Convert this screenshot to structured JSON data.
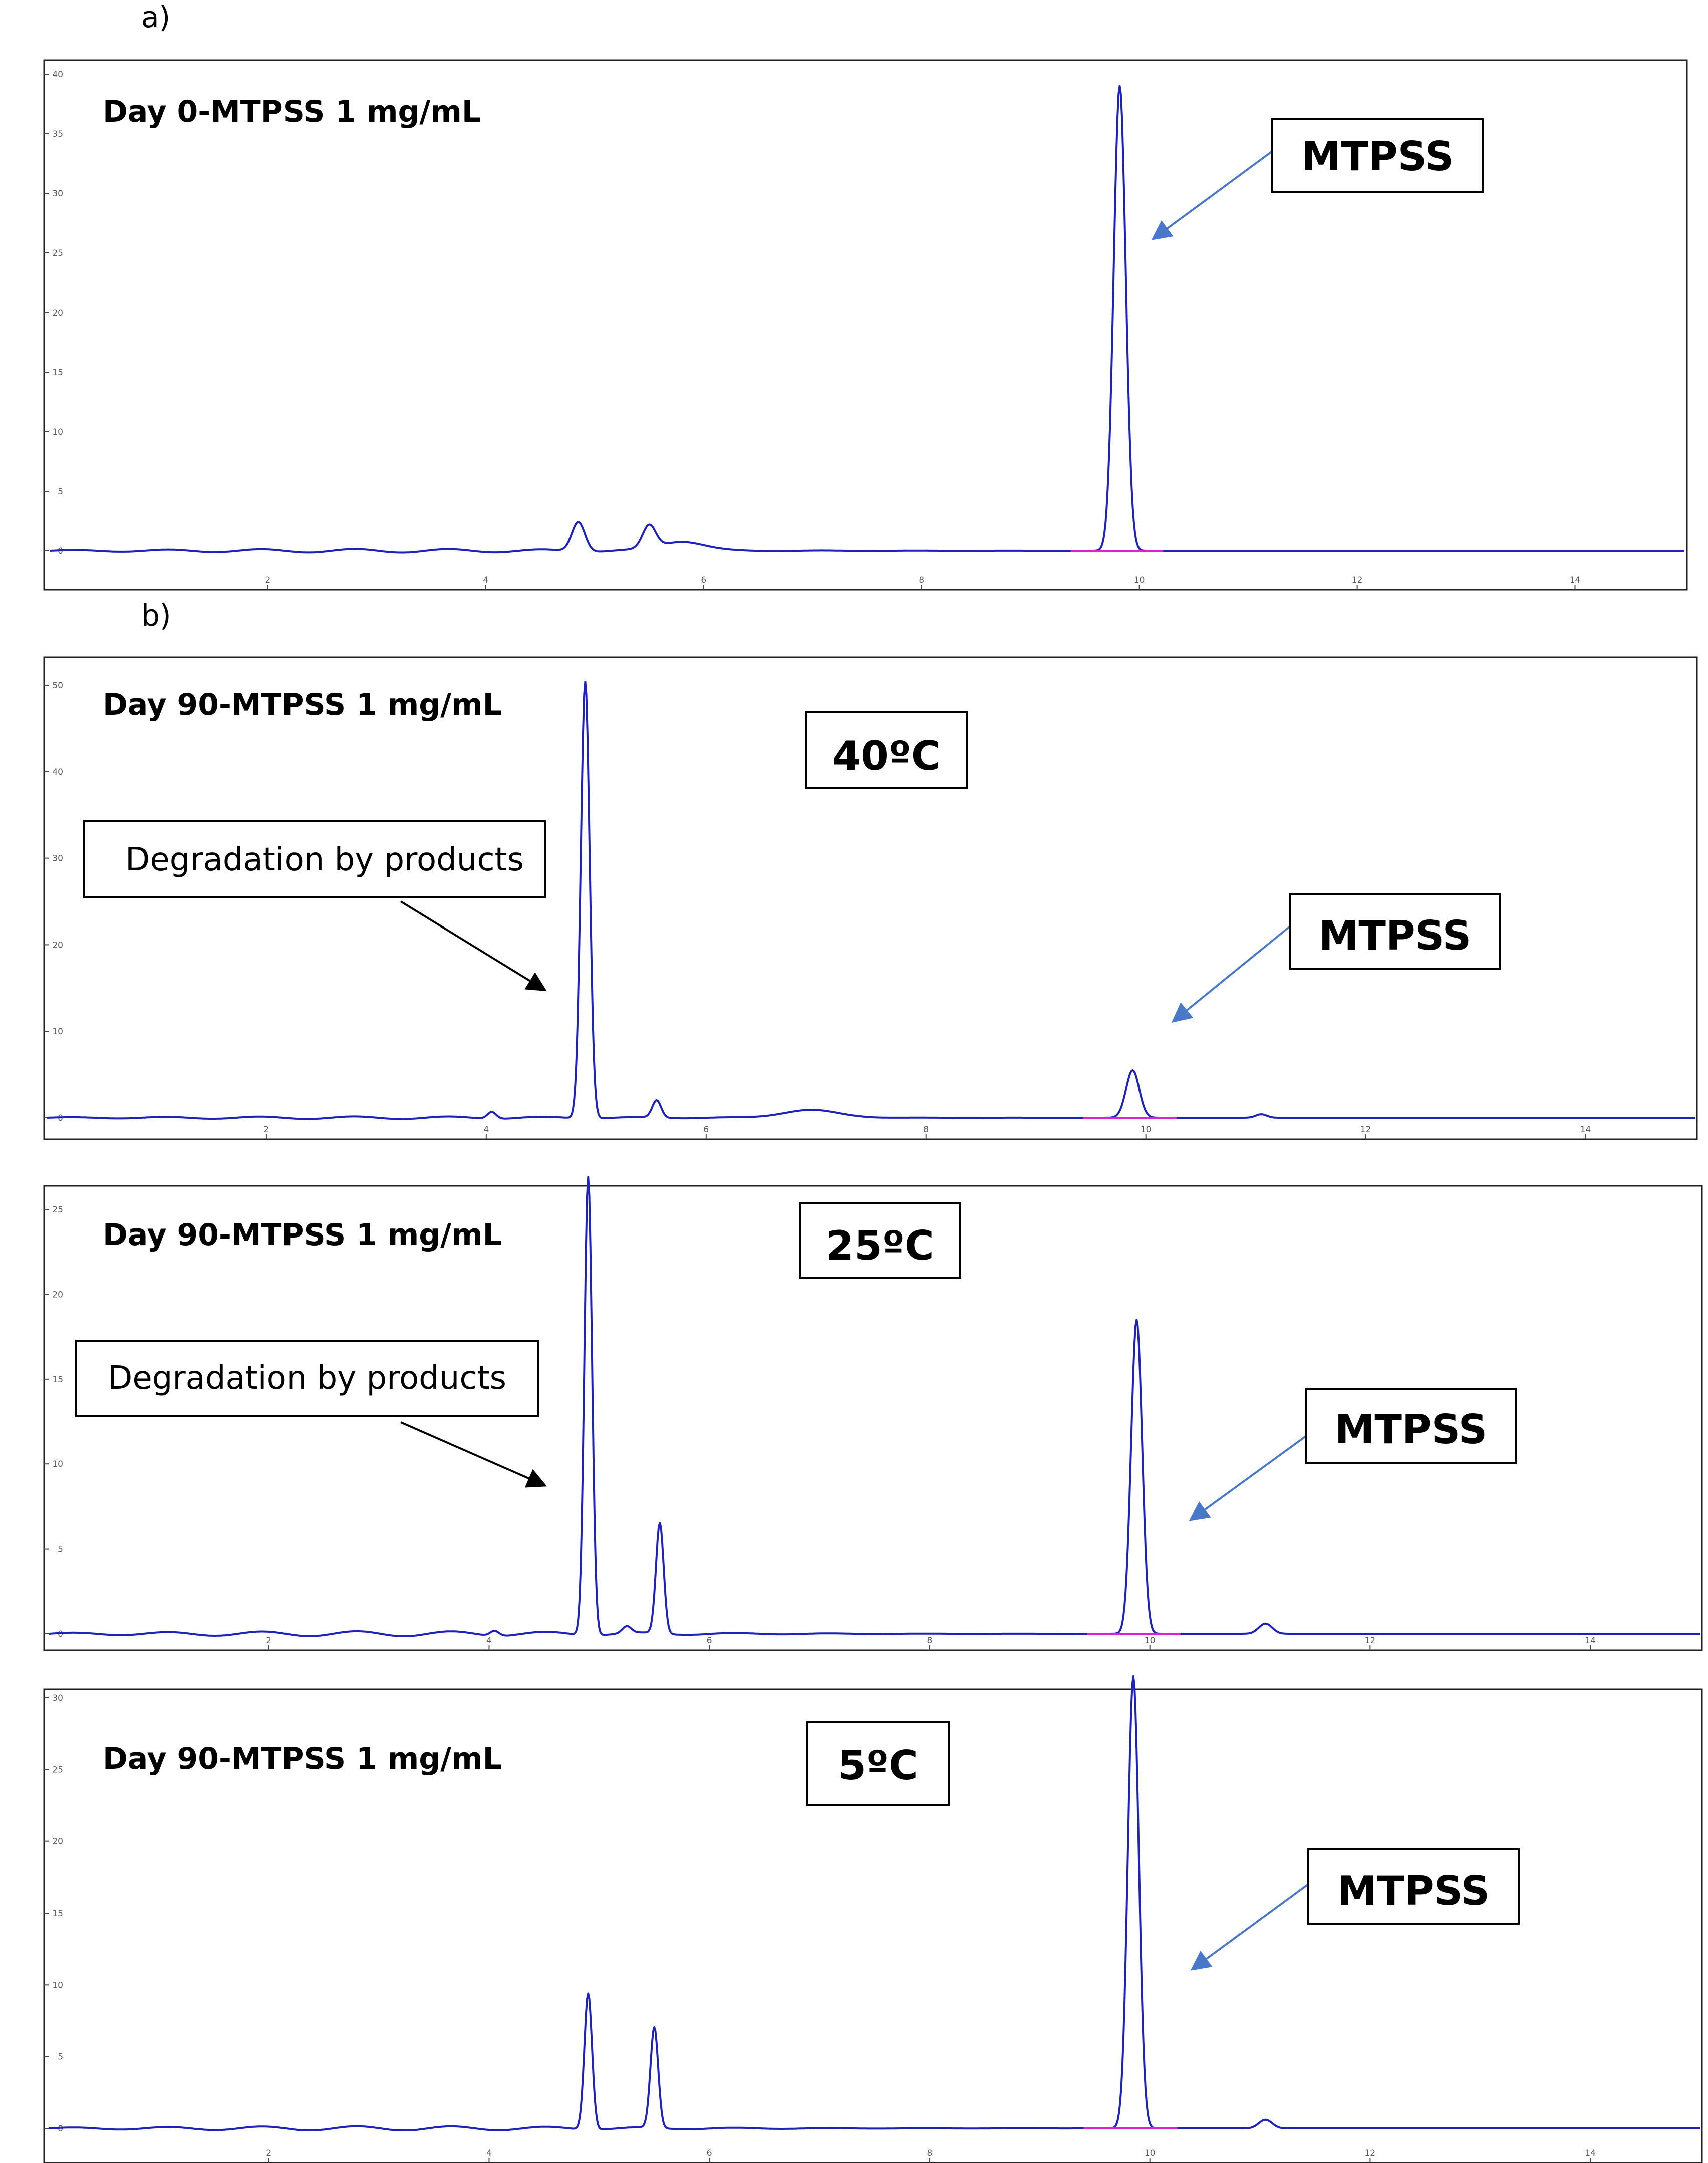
{
  "panel_labels": [
    "a)",
    "b)"
  ],
  "chart_data": [
    {
      "type": "line",
      "title": "Day 0-MTPSS 1 mg/mL",
      "condition": "",
      "xlim": [
        0,
        15
      ],
      "ylim": [
        0,
        40
      ],
      "x_ticks": [
        2,
        4,
        6,
        8,
        10,
        12,
        14
      ],
      "y_ticks": [
        0,
        5,
        10,
        15,
        20,
        25,
        30,
        35,
        40
      ],
      "peaks": [
        {
          "rt": 4.85,
          "height": 2.5,
          "width": 0.06
        },
        {
          "rt": 5.5,
          "height": 1.9,
          "width": 0.06
        },
        {
          "rt": 5.8,
          "height": 0.8,
          "width": 0.2
        },
        {
          "rt": 9.82,
          "height": 39.0,
          "width": 0.055
        }
      ],
      "labeled_peak_rt": 9.82,
      "annotations": [
        {
          "text": "MTPSS",
          "target_rt": 9.82
        }
      ]
    },
    {
      "type": "line",
      "title": "Day 90-MTPSS 1 mg/mL",
      "condition": "40ºC",
      "xlim": [
        0,
        15
      ],
      "ylim": [
        0,
        50
      ],
      "x_ticks": [
        2,
        4,
        6,
        8,
        10,
        12,
        14
      ],
      "y_ticks": [
        0,
        10,
        20,
        30,
        40,
        50
      ],
      "peaks": [
        {
          "rt": 4.05,
          "height": 0.8,
          "width": 0.04
        },
        {
          "rt": 4.9,
          "height": 50.5,
          "width": 0.04
        },
        {
          "rt": 5.55,
          "height": 2.0,
          "width": 0.04
        },
        {
          "rt": 6.95,
          "height": 0.9,
          "width": 0.25
        },
        {
          "rt": 9.88,
          "height": 5.5,
          "width": 0.06
        },
        {
          "rt": 11.05,
          "height": 0.4,
          "width": 0.05
        }
      ],
      "labeled_peak_rt": 9.88,
      "annotations": [
        {
          "text": "Degradation by products",
          "target_rt": 4.9
        },
        {
          "text": "MTPSS",
          "target_rt": 9.88
        }
      ]
    },
    {
      "type": "line",
      "title": "Day 90-MTPSS 1 mg/mL",
      "condition": "25ºC",
      "xlim": [
        0,
        15
      ],
      "ylim": [
        0,
        25
      ],
      "x_ticks": [
        2,
        4,
        6,
        8,
        10,
        12,
        14
      ],
      "y_ticks": [
        0,
        5,
        10,
        15,
        20,
        25
      ],
      "peaks": [
        {
          "rt": 4.05,
          "height": 0.3,
          "width": 0.04
        },
        {
          "rt": 4.9,
          "height": 27.0,
          "width": 0.035
        },
        {
          "rt": 5.25,
          "height": 0.4,
          "width": 0.04
        },
        {
          "rt": 5.55,
          "height": 6.5,
          "width": 0.035
        },
        {
          "rt": 9.88,
          "height": 18.5,
          "width": 0.05
        },
        {
          "rt": 11.05,
          "height": 0.6,
          "width": 0.06
        }
      ],
      "labeled_peak_rt": 9.88,
      "annotations": [
        {
          "text": "Degradation by products",
          "target_rt": 4.9
        },
        {
          "text": "MTPSS",
          "target_rt": 9.88
        }
      ]
    },
    {
      "type": "line",
      "title": "Day 90-MTPSS 1 mg/mL",
      "condition": "5ºC",
      "xlim": [
        0,
        15
      ],
      "ylim": [
        0,
        30
      ],
      "x_ticks": [
        2,
        4,
        6,
        8,
        10,
        12,
        14
      ],
      "y_ticks": [
        0,
        5,
        10,
        15,
        20,
        25,
        30
      ],
      "peaks": [
        {
          "rt": 4.9,
          "height": 9.5,
          "width": 0.035
        },
        {
          "rt": 5.5,
          "height": 7.0,
          "width": 0.035
        },
        {
          "rt": 9.85,
          "height": 31.5,
          "width": 0.05
        },
        {
          "rt": 11.05,
          "height": 0.6,
          "width": 0.06
        }
      ],
      "labeled_peak_rt": 9.85,
      "annotations": [
        {
          "text": "MTPSS",
          "target_rt": 9.85
        }
      ]
    }
  ]
}
